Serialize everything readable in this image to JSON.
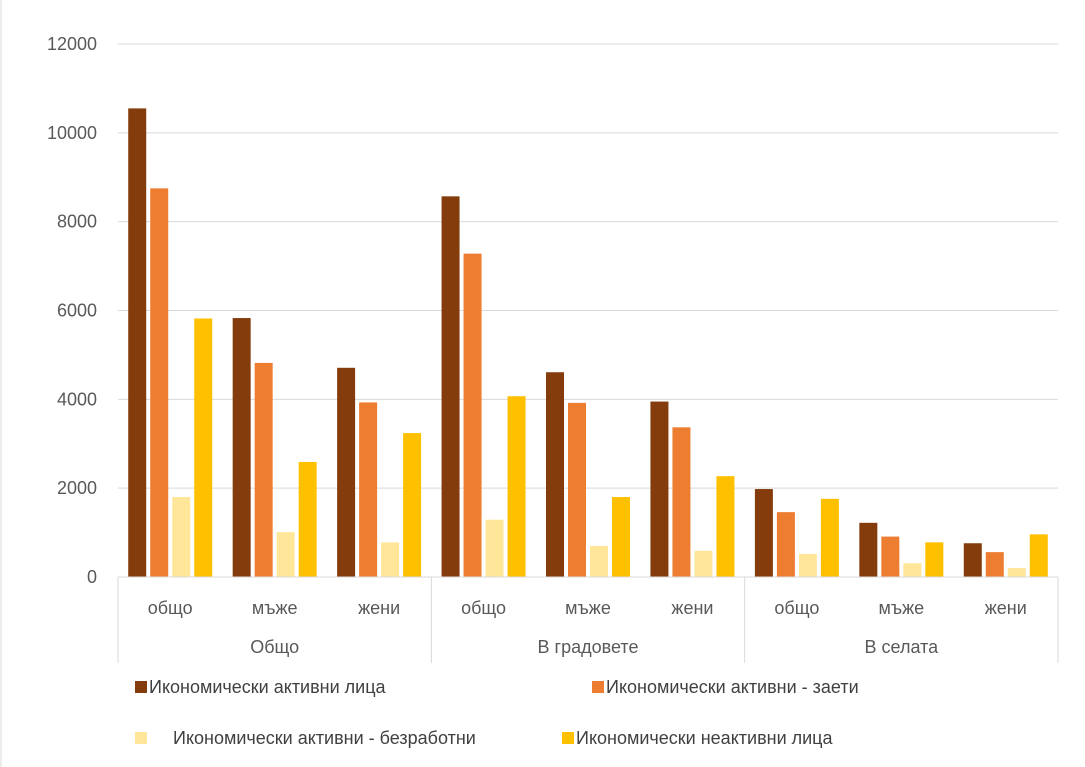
{
  "chart_data": {
    "type": "bar",
    "groups": [
      {
        "label": "Общо",
        "categories": [
          "общо",
          "мъже",
          "жени"
        ]
      },
      {
        "label": "В градовете",
        "categories": [
          "общо",
          "мъже",
          "жени"
        ]
      },
      {
        "label": "В селата",
        "categories": [
          "общо",
          "мъже",
          "жени"
        ]
      }
    ],
    "series": [
      {
        "name": "Икономически активни лица",
        "color": "#843C0C",
        "values": [
          10550,
          5830,
          4710,
          8570,
          4610,
          3950,
          1980,
          1220,
          760
        ]
      },
      {
        "name": "Икономически активни - заети",
        "color": "#ED7D31",
        "values": [
          8750,
          4820,
          3930,
          7280,
          3920,
          3370,
          1460,
          910,
          560
        ]
      },
      {
        "name": "Икономически активни - безработни",
        "color": "#FFE699",
        "values": [
          1800,
          1010,
          780,
          1290,
          700,
          590,
          520,
          310,
          200
        ]
      },
      {
        "name": "Икономически неактивни лица",
        "color": "#FFC000",
        "values": [
          5820,
          2590,
          3240,
          4070,
          1800,
          2270,
          1760,
          780,
          960
        ]
      }
    ],
    "y_ticks": [
      "0",
      "2000",
      "4000",
      "6000",
      "8000",
      "10000",
      "12000"
    ],
    "ylim": [
      0,
      12000
    ],
    "grid": true,
    "legend_position": "bottom"
  }
}
